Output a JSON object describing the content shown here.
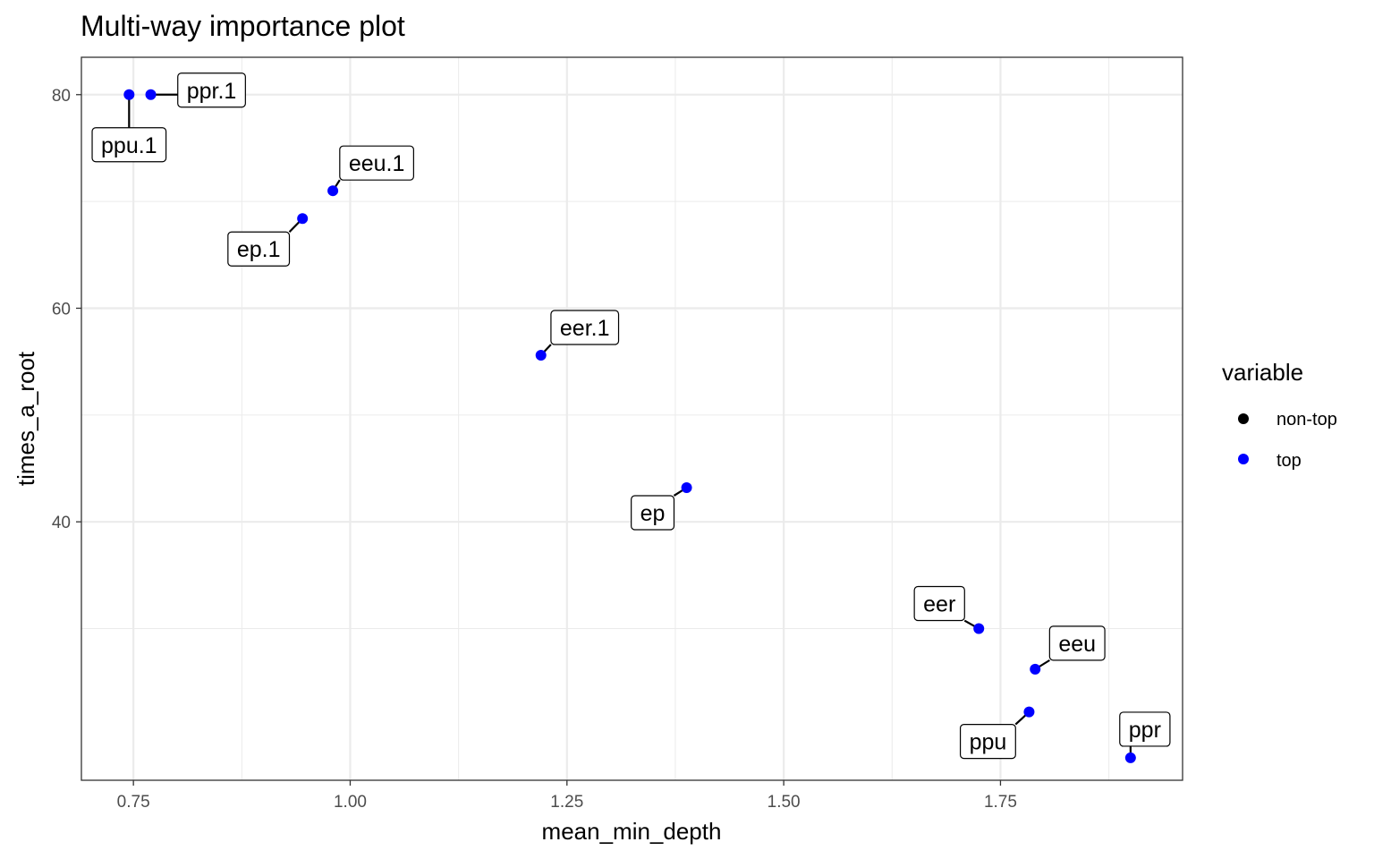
{
  "chart_data": {
    "type": "scatter",
    "title": "Multi-way importance plot",
    "xlabel": "mean_min_depth",
    "ylabel": "times_a_root",
    "xlim": [
      0.69,
      1.96
    ],
    "ylim": [
      15.8,
      83.5
    ],
    "x_ticks": [
      0.75,
      1.0,
      1.25,
      1.5,
      1.75
    ],
    "x_tick_labels": [
      "0.75",
      "1.00",
      "1.25",
      "1.50",
      "1.75"
    ],
    "y_ticks": [
      40,
      60,
      80
    ],
    "y_tick_labels": [
      "40",
      "60",
      "80"
    ],
    "grid": true,
    "legend": {
      "title": "variable",
      "position": "right",
      "items": [
        {
          "label": "non-top",
          "color": "#000000"
        },
        {
          "label": "top",
          "color": "#0000ff"
        }
      ]
    },
    "points": [
      {
        "label": "ppu.1",
        "x": 0.745,
        "y": 80,
        "group": "top"
      },
      {
        "label": "ppr.1",
        "x": 0.77,
        "y": 80,
        "group": "top"
      },
      {
        "label": "eeu.1",
        "x": 0.98,
        "y": 71,
        "group": "top"
      },
      {
        "label": "ep.1",
        "x": 0.945,
        "y": 68.4,
        "group": "top"
      },
      {
        "label": "eer.1",
        "x": 1.22,
        "y": 55.6,
        "group": "top"
      },
      {
        "label": "ep",
        "x": 1.388,
        "y": 43.2,
        "group": "top"
      },
      {
        "label": "eer",
        "x": 1.725,
        "y": 30,
        "group": "top"
      },
      {
        "label": "eeu",
        "x": 1.79,
        "y": 26.2,
        "group": "top"
      },
      {
        "label": "ppu",
        "x": 1.783,
        "y": 22.2,
        "group": "top"
      },
      {
        "label": "ppr",
        "x": 1.9,
        "y": 17.9,
        "group": "top"
      }
    ]
  }
}
